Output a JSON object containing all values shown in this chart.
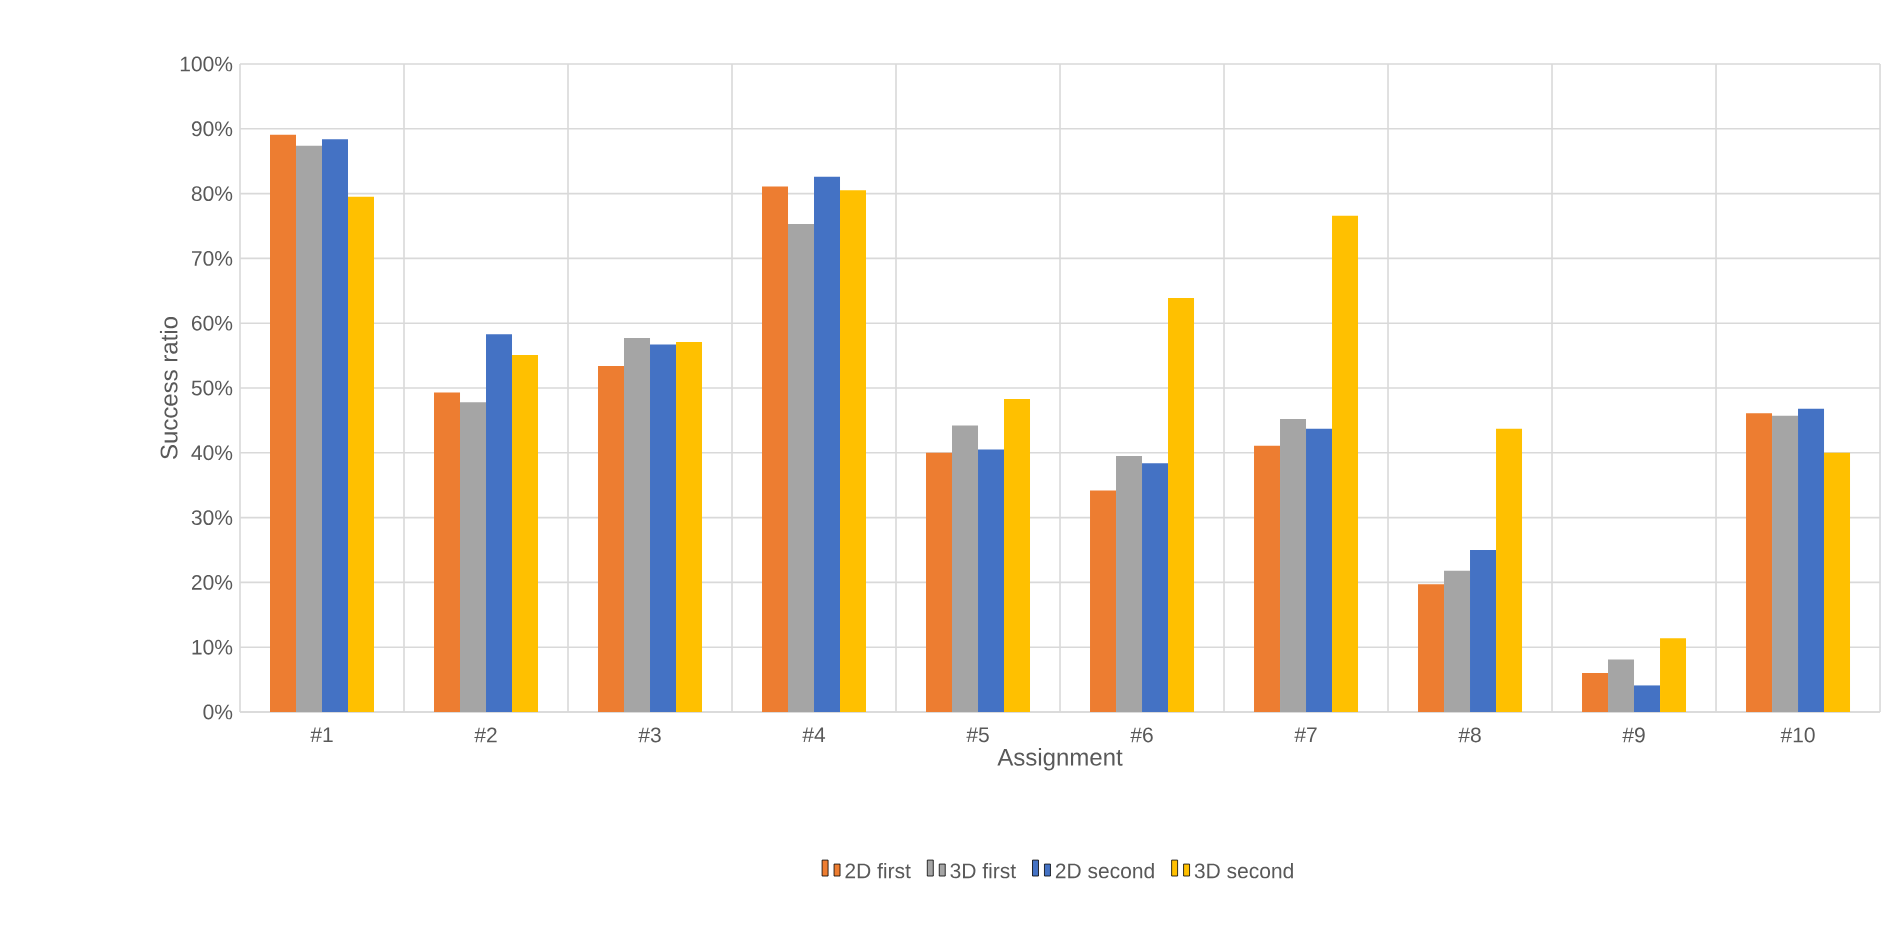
{
  "chart_data": {
    "type": "bar",
    "xlabel": "Assignment",
    "ylabel": "Success ratio",
    "categories": [
      "#1",
      "#2",
      "#3",
      "#4",
      "#5",
      "#6",
      "#7",
      "#8",
      "#9",
      "#10"
    ],
    "series": [
      {
        "name": "2D first",
        "color": "#ed7d31",
        "values": [
          89.1,
          49.3,
          53.4,
          81.1,
          40.0,
          34.2,
          41.1,
          19.7,
          6.0,
          46.1
        ]
      },
      {
        "name": "3D first",
        "color": "#a5a5a5",
        "values": [
          87.4,
          47.8,
          57.7,
          75.3,
          44.2,
          39.5,
          45.2,
          21.8,
          8.1,
          45.7
        ]
      },
      {
        "name": "2D second",
        "color": "#4472c4",
        "values": [
          88.4,
          58.3,
          56.7,
          82.6,
          40.5,
          38.4,
          43.7,
          25.0,
          4.1,
          46.8
        ]
      },
      {
        "name": "3D second",
        "color": "#ffc000",
        "values": [
          79.5,
          55.1,
          57.1,
          80.5,
          48.3,
          63.9,
          76.6,
          43.7,
          11.4,
          40.0
        ]
      }
    ],
    "ylim": [
      0,
      100
    ],
    "yticks": [
      {
        "value": 0,
        "label": "0%"
      },
      {
        "value": 10,
        "label": "10%"
      },
      {
        "value": 20,
        "label": "20%"
      },
      {
        "value": 30,
        "label": "30%"
      },
      {
        "value": 40,
        "label": "40%"
      },
      {
        "value": 50,
        "label": "50%"
      },
      {
        "value": 60,
        "label": "60%"
      },
      {
        "value": 70,
        "label": "70%"
      },
      {
        "value": 80,
        "label": "80%"
      },
      {
        "value": 90,
        "label": "90%"
      },
      {
        "value": 100,
        "label": "100%"
      }
    ],
    "grid": true,
    "legend": "bottom"
  }
}
